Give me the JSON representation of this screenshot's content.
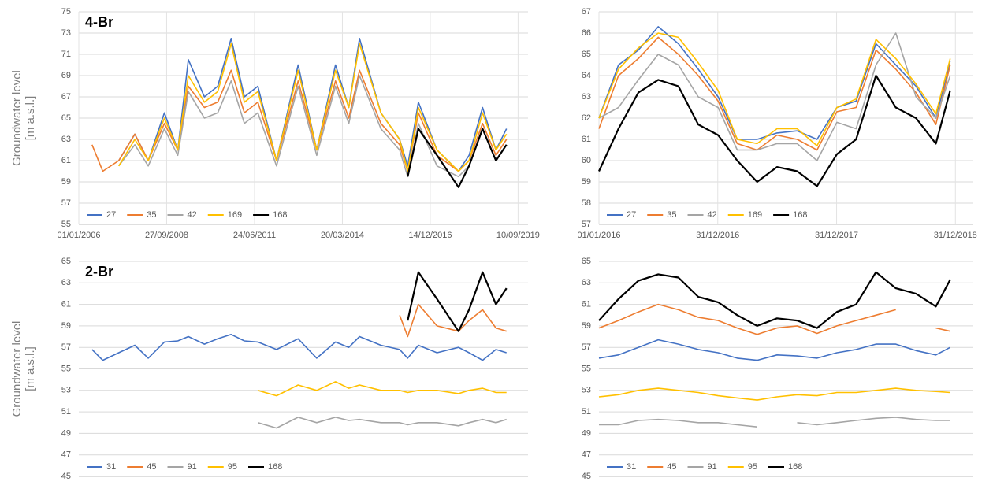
{
  "chart_data": [
    {
      "type": "line",
      "title": "4-Br",
      "ylabel": [
        "Groundwater level",
        "[m a.s.l.]"
      ],
      "xlim": [
        "2006-01-01",
        "2020-01-01"
      ],
      "xticks": [
        {
          "value": "2006-01-01",
          "label": "01/01/2006"
        },
        {
          "value": "2008-09-27",
          "label": "27/09/2008"
        },
        {
          "value": "2011-06-24",
          "label": "24/06/2011"
        },
        {
          "value": "2014-03-20",
          "label": "20/03/2014"
        },
        {
          "value": "2016-12-14",
          "label": "14/12/2016"
        },
        {
          "value": "2019-09-10",
          "label": "10/09/2019"
        }
      ],
      "ylim": [
        55,
        75
      ],
      "yticks": [
        55,
        57,
        59,
        61,
        63,
        65,
        67,
        69,
        71,
        73,
        75
      ],
      "grid": true,
      "legend": "lower left",
      "x": [
        "2006-06-01",
        "2006-10-01",
        "2007-04-01",
        "2007-10-01",
        "2008-03-01",
        "2008-09-01",
        "2009-02-01",
        "2009-06-01",
        "2009-12-01",
        "2010-05-01",
        "2010-10-01",
        "2011-03-01",
        "2011-08-01",
        "2012-03-01",
        "2012-11-01",
        "2013-06-01",
        "2014-01-01",
        "2014-06-01",
        "2014-10-01",
        "2015-06-01",
        "2016-01-01",
        "2016-04-01",
        "2016-08-01",
        "2017-03-01",
        "2017-11-01",
        "2018-03-01",
        "2018-08-01",
        "2019-01-01",
        "2019-05-01"
      ],
      "series": [
        {
          "name": "27",
          "color": "#4472c4",
          "values": [
            null,
            null,
            61,
            63.5,
            61,
            65.5,
            62,
            70.5,
            67,
            68,
            72.5,
            67,
            68,
            61,
            70,
            62,
            70,
            66,
            72.5,
            65.5,
            63,
            60.5,
            66.5,
            62,
            60,
            61.5,
            66,
            62,
            64
          ]
        },
        {
          "name": "35",
          "color": "#ed7d31",
          "values": [
            62.5,
            60,
            61,
            63.5,
            61,
            64.5,
            62,
            68,
            66,
            66.5,
            69.5,
            65.5,
            66.5,
            61,
            68.5,
            62,
            68.5,
            65,
            69.5,
            64.5,
            62.5,
            60,
            65.5,
            61.5,
            60,
            61,
            64.5,
            61.5,
            63
          ]
        },
        {
          "name": "42",
          "color": "#a5a5a5",
          "values": [
            null,
            null,
            60.5,
            62.5,
            60.5,
            64,
            61.5,
            67.5,
            65,
            65.5,
            68.5,
            64.5,
            65.5,
            60.5,
            68,
            61.5,
            68,
            64.5,
            69,
            64,
            62,
            59.5,
            64.5,
            60.5,
            59.5,
            60.5,
            64,
            61,
            62.5
          ]
        },
        {
          "name": "169",
          "color": "#ffc000",
          "values": [
            null,
            null,
            60.5,
            63,
            61,
            65,
            62,
            69,
            66.5,
            67.5,
            72,
            66.5,
            67.5,
            61,
            69.5,
            62,
            69.5,
            66,
            72,
            65.5,
            63,
            60,
            66,
            62,
            60,
            61,
            65.5,
            62,
            63.5
          ]
        },
        {
          "name": "168",
          "color": "#000000",
          "values": [
            null,
            null,
            null,
            null,
            null,
            null,
            null,
            null,
            null,
            null,
            null,
            null,
            null,
            null,
            null,
            null,
            null,
            null,
            null,
            null,
            null,
            59.5,
            64,
            61.5,
            58.5,
            60.5,
            64,
            61,
            62.5
          ]
        }
      ]
    },
    {
      "type": "line",
      "xlim": [
        "2016-01-01",
        "2019-02-24"
      ],
      "xticks": [
        {
          "value": "2016-01-01",
          "label": "01/01/2016"
        },
        {
          "value": "2016-12-31",
          "label": "31/12/2016"
        },
        {
          "value": "2017-12-31",
          "label": "31/12/2017"
        },
        {
          "value": "2018-12-31",
          "label": "31/12/2018"
        }
      ],
      "ylim": [
        57,
        67
      ],
      "yticks": [
        57,
        58,
        59,
        60,
        61,
        62,
        63,
        64,
        65,
        66,
        67
      ],
      "grid": true,
      "legend": "lower left",
      "x": [
        "2016-01-01",
        "2016-03-01",
        "2016-05-01",
        "2016-07-01",
        "2016-09-01",
        "2016-11-01",
        "2017-01-01",
        "2017-03-01",
        "2017-05-01",
        "2017-07-01",
        "2017-09-01",
        "2017-11-01",
        "2018-01-01",
        "2018-03-01",
        "2018-05-01",
        "2018-07-01",
        "2018-09-01",
        "2018-11-01",
        "2018-12-15"
      ],
      "series": [
        {
          "name": "27",
          "color": "#4472c4",
          "values": [
            62,
            64.5,
            65.2,
            66.3,
            65.5,
            64.3,
            63,
            61,
            61,
            61.3,
            61.4,
            61,
            62.5,
            62.8,
            65.5,
            64.5,
            63.5,
            62,
            64.7
          ]
        },
        {
          "name": "35",
          "color": "#ed7d31",
          "values": [
            61.5,
            64,
            64.8,
            65.8,
            65,
            64,
            62.8,
            60.8,
            60.5,
            61.2,
            61,
            60.5,
            62.3,
            62.5,
            65.2,
            64.3,
            63.2,
            61.7,
            64.5
          ]
        },
        {
          "name": "42",
          "color": "#a5a5a5",
          "values": [
            62,
            62.5,
            63.8,
            65,
            64.5,
            63,
            62.5,
            60.5,
            60.5,
            60.8,
            60.8,
            60,
            61.8,
            61.5,
            64.5,
            66,
            63,
            62,
            64
          ]
        },
        {
          "name": "169",
          "color": "#ffc000",
          "values": [
            62,
            64.3,
            65.3,
            66,
            65.8,
            64.6,
            63.3,
            61,
            60.8,
            61.5,
            61.5,
            60.7,
            62.5,
            62.9,
            65.7,
            64.8,
            63.6,
            62.2,
            64.8
          ]
        },
        {
          "name": "168",
          "color": "#000000",
          "values": [
            59.5,
            61.5,
            63.2,
            63.8,
            63.5,
            61.7,
            61.2,
            60,
            59,
            59.7,
            59.5,
            58.8,
            60.3,
            61,
            64,
            62.5,
            62,
            60.8,
            63.3
          ]
        }
      ]
    },
    {
      "type": "line",
      "title": "2-Br",
      "ylabel": [
        "Groundwater level",
        "[m a.s.l.]"
      ],
      "xlim": [
        "2006-01-01",
        "2020-01-01"
      ],
      "ylim": [
        45,
        65
      ],
      "yticks": [
        45,
        47,
        49,
        51,
        53,
        55,
        57,
        59,
        61,
        63,
        65
      ],
      "grid": true,
      "legend": "lower left",
      "x": [
        "2006-06-01",
        "2006-10-01",
        "2007-04-01",
        "2007-10-01",
        "2008-03-01",
        "2008-09-01",
        "2009-02-01",
        "2009-06-01",
        "2009-12-01",
        "2010-05-01",
        "2010-10-01",
        "2011-03-01",
        "2011-08-01",
        "2012-03-01",
        "2012-11-01",
        "2013-06-01",
        "2014-01-01",
        "2014-06-01",
        "2014-10-01",
        "2015-06-01",
        "2016-01-01",
        "2016-04-01",
        "2016-08-01",
        "2017-03-01",
        "2017-11-01",
        "2018-03-01",
        "2018-08-01",
        "2019-01-01",
        "2019-05-01"
      ],
      "series": [
        {
          "name": "31",
          "color": "#4472c4",
          "values": [
            56.8,
            55.8,
            56.5,
            57.2,
            56,
            57.5,
            57.6,
            58,
            57.3,
            57.8,
            58.2,
            57.6,
            57.5,
            56.8,
            57.8,
            56,
            57.5,
            57,
            58,
            57.2,
            56.8,
            56,
            57.2,
            56.5,
            57,
            56.5,
            55.8,
            56.8,
            56.5
          ]
        },
        {
          "name": "45",
          "color": "#ed7d31",
          "values": [
            null,
            null,
            null,
            null,
            null,
            null,
            null,
            null,
            null,
            null,
            null,
            null,
            null,
            null,
            null,
            null,
            null,
            null,
            null,
            null,
            60,
            58,
            61,
            59,
            58.5,
            59.5,
            60.5,
            58.8,
            58.5
          ]
        },
        {
          "name": "91",
          "color": "#a5a5a5",
          "values": [
            null,
            null,
            null,
            null,
            null,
            null,
            null,
            null,
            null,
            null,
            null,
            null,
            50,
            49.5,
            50.5,
            50,
            50.5,
            50.2,
            50.3,
            50,
            50,
            49.8,
            50,
            50,
            49.7,
            50,
            50.3,
            50,
            50.3
          ]
        },
        {
          "name": "95",
          "color": "#ffc000",
          "values": [
            null,
            null,
            null,
            null,
            null,
            null,
            null,
            null,
            null,
            null,
            null,
            null,
            53,
            52.5,
            53.5,
            53,
            53.8,
            53.2,
            53.5,
            53,
            53,
            52.8,
            53,
            53,
            52.7,
            53,
            53.2,
            52.8,
            52.8
          ]
        },
        {
          "name": "168",
          "color": "#000000",
          "values": [
            null,
            null,
            null,
            null,
            null,
            null,
            null,
            null,
            null,
            null,
            null,
            null,
            null,
            null,
            null,
            null,
            null,
            null,
            null,
            null,
            null,
            59.5,
            64,
            61.5,
            58.5,
            60.5,
            64,
            61,
            62.5
          ]
        }
      ]
    },
    {
      "type": "line",
      "xlim": [
        "2016-01-01",
        "2019-02-24"
      ],
      "ylim": [
        45,
        65
      ],
      "yticks": [
        45,
        47,
        49,
        51,
        53,
        55,
        57,
        59,
        61,
        63,
        65
      ],
      "grid": true,
      "legend": "lower left",
      "x": [
        "2016-01-01",
        "2016-03-01",
        "2016-05-01",
        "2016-07-01",
        "2016-09-01",
        "2016-11-01",
        "2017-01-01",
        "2017-03-01",
        "2017-05-01",
        "2017-07-01",
        "2017-09-01",
        "2017-11-01",
        "2018-01-01",
        "2018-03-01",
        "2018-05-01",
        "2018-07-01",
        "2018-09-01",
        "2018-11-01",
        "2018-12-15"
      ],
      "series": [
        {
          "name": "31",
          "color": "#4472c4",
          "values": [
            56,
            56.3,
            57,
            57.7,
            57.3,
            56.8,
            56.5,
            56,
            55.8,
            56.3,
            56.2,
            56,
            56.5,
            56.8,
            57.3,
            57.3,
            56.7,
            56.3,
            57
          ]
        },
        {
          "name": "45",
          "color": "#ed7d31",
          "values": [
            58.8,
            59.5,
            60.3,
            61,
            60.5,
            59.8,
            59.5,
            58.8,
            58.2,
            58.8,
            59,
            58.3,
            59,
            59.5,
            60,
            60.5,
            null,
            58.8,
            58.5
          ]
        },
        {
          "name": "91",
          "color": "#a5a5a5",
          "values": [
            49.8,
            49.8,
            50.2,
            50.3,
            50.2,
            50,
            50,
            49.8,
            49.6,
            null,
            50,
            49.8,
            50,
            50.2,
            50.4,
            50.5,
            50.3,
            50.2,
            50.2
          ]
        },
        {
          "name": "95",
          "color": "#ffc000",
          "values": [
            52.4,
            52.6,
            53,
            53.2,
            53,
            52.8,
            52.5,
            52.3,
            52.1,
            52.4,
            52.6,
            52.5,
            52.8,
            52.8,
            53,
            53.2,
            53,
            52.9,
            52.8
          ]
        },
        {
          "name": "168",
          "color": "#000000",
          "values": [
            59.5,
            61.5,
            63.2,
            63.8,
            63.5,
            61.7,
            61.2,
            60,
            59,
            59.7,
            59.5,
            58.8,
            60.3,
            61,
            64,
            62.5,
            62,
            60.8,
            63.3
          ]
        }
      ]
    }
  ]
}
